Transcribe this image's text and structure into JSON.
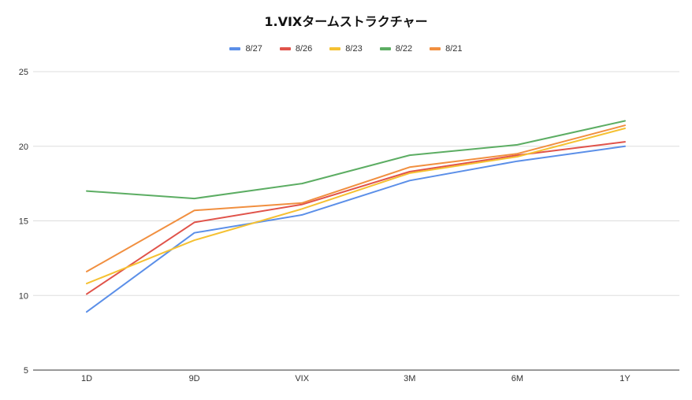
{
  "chart_data": {
    "type": "line",
    "title": "1.VIXタームストラクチャー",
    "categories": [
      "1D",
      "9D",
      "VIX",
      "3M",
      "6M",
      "1Y"
    ],
    "ylim": [
      5,
      25
    ],
    "yticks": [
      5,
      10,
      15,
      20,
      25
    ],
    "grid": true,
    "legend_position": "top",
    "series": [
      {
        "name": "8/27",
        "color": "#5b8fe8",
        "values": [
          8.9,
          14.2,
          15.4,
          17.7,
          19.0,
          20.0
        ]
      },
      {
        "name": "8/26",
        "color": "#e0534a",
        "values": [
          10.1,
          14.9,
          16.1,
          18.3,
          19.4,
          20.3
        ]
      },
      {
        "name": "8/23",
        "color": "#f5c132",
        "values": [
          10.8,
          13.7,
          15.8,
          18.2,
          19.3,
          21.2
        ]
      },
      {
        "name": "8/22",
        "color": "#5cad63",
        "values": [
          17.0,
          16.5,
          17.5,
          19.4,
          20.1,
          21.7
        ]
      },
      {
        "name": "8/21",
        "color": "#f18f3f",
        "values": [
          11.6,
          15.7,
          16.2,
          18.6,
          19.5,
          21.4
        ]
      }
    ]
  }
}
